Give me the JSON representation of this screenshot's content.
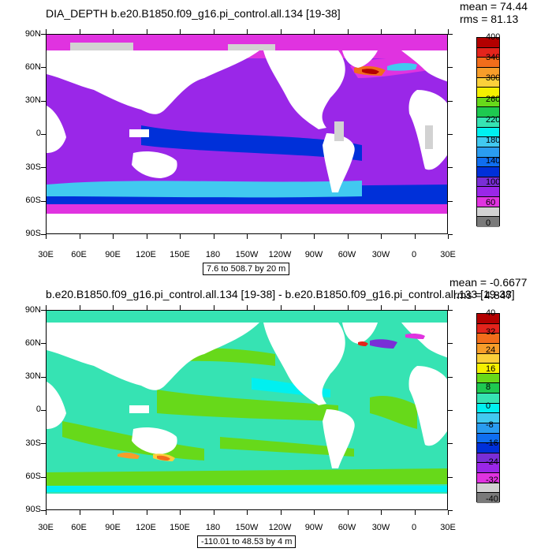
{
  "panels": [
    {
      "title": "DIA_DEPTH b.e20.B1850.f09_g16.pi_control.all.134 [19-38]",
      "mean": "mean = 74.44",
      "rms": "rms = 81.13",
      "range_label": "7.6 to 508.7 by 20 m",
      "colorbar_labels": [
        "400",
        "340",
        "300",
        "260",
        "220",
        "180",
        "140",
        "100",
        "60",
        "0"
      ],
      "colorbar_colors": [
        "#b30000",
        "#e3241c",
        "#f26d1b",
        "#f79d2a",
        "#fbd03a",
        "#f5f000",
        "#67d91a",
        "#1ec950",
        "#36e3b3",
        "#00f0f0",
        "#41c9f0",
        "#2a9cf0",
        "#0f6ef0",
        "#0030d9",
        "#7a2ed6",
        "#9a27e8",
        "#e033e0",
        "#d2d2d2",
        "#7a7a7a"
      ],
      "colors": {
        "ocean_base": "#9a27e8",
        "ocean_low": "#e033e0",
        "ocean_mid": "#0030d9",
        "ocean_high": "#41c9f0",
        "sea_ice": "#d2d2d2",
        "land": "#ffffff"
      }
    },
    {
      "title": "b.e20.B1850.f09_g16.pi_control.all.134 [19-38] - b.e20.B1850.f09_g16.pi_control.all.133 [19-38]",
      "mean": "mean = -0.6677",
      "rms": "rms = 4.847",
      "range_label": "-110.01 to 48.53 by 4 m",
      "colorbar_labels": [
        "40",
        "32",
        "24",
        "16",
        "8",
        "0",
        "-8",
        "-16",
        "-24",
        "-32",
        "-40"
      ],
      "colorbar_colors": [
        "#b30000",
        "#e3241c",
        "#f26d1b",
        "#f79d2a",
        "#fbd03a",
        "#f5f000",
        "#67d91a",
        "#1ec950",
        "#36e3b3",
        "#00f0f0",
        "#41c9f0",
        "#2a9cf0",
        "#0f6ef0",
        "#0030d9",
        "#7a2ed6",
        "#9a27e8",
        "#e033e0",
        "#d2d2d2",
        "#7a7a7a"
      ],
      "colors": {
        "ocean_base": "#36e3b3",
        "ocean_pos": "#67d91a",
        "ocean_neg": "#00f0f0",
        "land": "#ffffff"
      }
    }
  ],
  "axes": {
    "y_labels": [
      "90N",
      "60N",
      "30N",
      "0",
      "30S",
      "60S",
      "90S"
    ],
    "x_labels": [
      "30E",
      "60E",
      "90E",
      "120E",
      "150E",
      "180",
      "150W",
      "120W",
      "90W",
      "60W",
      "30W",
      "0",
      "30E"
    ]
  }
}
